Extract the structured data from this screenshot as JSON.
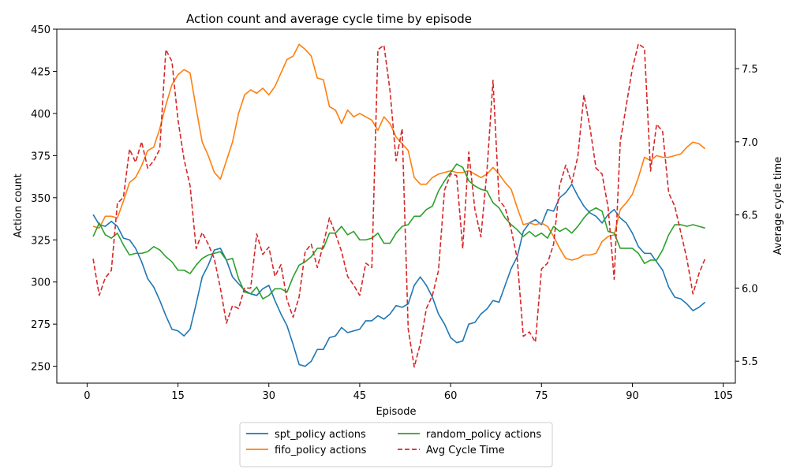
{
  "chart_data": {
    "type": "line",
    "title": "Action count and average cycle time by episode",
    "xlabel": "Episode",
    "ylabel_left": "Action count",
    "ylabel_right": "Average cycle time",
    "xlim": [
      -5,
      107
    ],
    "ylim_left": [
      240,
      450
    ],
    "ylim_right": [
      5.35,
      7.77
    ],
    "x_ticks": [
      0,
      15,
      30,
      45,
      60,
      75,
      90,
      105
    ],
    "y_left_ticks": [
      250,
      275,
      300,
      325,
      350,
      375,
      400,
      425,
      450
    ],
    "y_right_ticks": [
      5.5,
      6.0,
      6.5,
      7.0,
      7.5
    ],
    "grid": false,
    "legend_position": "bottom-center",
    "x": [
      1,
      2,
      3,
      4,
      5,
      6,
      7,
      8,
      9,
      10,
      11,
      12,
      13,
      14,
      15,
      16,
      17,
      18,
      19,
      20,
      21,
      22,
      23,
      24,
      25,
      26,
      27,
      28,
      29,
      30,
      31,
      32,
      33,
      34,
      35,
      36,
      37,
      38,
      39,
      40,
      41,
      42,
      43,
      44,
      45,
      46,
      47,
      48,
      49,
      50,
      51,
      52,
      53,
      54,
      55,
      56,
      57,
      58,
      59,
      60,
      61,
      62,
      63,
      64,
      65,
      66,
      67,
      68,
      69,
      70,
      71,
      72,
      73,
      74,
      75,
      76,
      77,
      78,
      79,
      80,
      81,
      82,
      83,
      84,
      85,
      86,
      87,
      88,
      89,
      90,
      91,
      92,
      93,
      94,
      95,
      96,
      97,
      98,
      99,
      100,
      101,
      102
    ],
    "series": [
      {
        "name": "spt_policy actions",
        "axis": "left",
        "color": "#1f77b4",
        "dash": "solid",
        "values": [
          340,
          334,
          333,
          336,
          333,
          326,
          325,
          320,
          312,
          302,
          297,
          289,
          280,
          272,
          271,
          268,
          272,
          287,
          303,
          310,
          319,
          320,
          313,
          303,
          299,
          295,
          293,
          292,
          296,
          298,
          289,
          281,
          274,
          263,
          251,
          250,
          253,
          260,
          260,
          267,
          268,
          273,
          270,
          271,
          272,
          277,
          277,
          280,
          278,
          281,
          286,
          285,
          287,
          298,
          303,
          298,
          291,
          281,
          275,
          267,
          264,
          265,
          275,
          276,
          281,
          284,
          289,
          288,
          298,
          308,
          315,
          330,
          335,
          337,
          334,
          343,
          342,
          350,
          353,
          358,
          351,
          345,
          341,
          339,
          335,
          340,
          343,
          338,
          335,
          329,
          321,
          317,
          317,
          312,
          307,
          297,
          291,
          290,
          287,
          283,
          285,
          288
        ]
      },
      {
        "name": "fifo_policy actions",
        "axis": "left",
        "color": "#ff7f0e",
        "dash": "solid",
        "values": [
          333,
          332,
          339,
          339,
          338,
          348,
          359,
          362,
          369,
          378,
          380,
          391,
          405,
          417,
          423,
          426,
          424,
          403,
          383,
          375,
          365,
          361,
          372,
          383,
          400,
          411,
          414,
          412,
          415,
          411,
          416,
          424,
          432,
          434,
          441,
          438,
          434,
          421,
          420,
          404,
          402,
          394,
          402,
          398,
          400,
          398,
          396,
          390,
          398,
          394,
          386,
          382,
          378,
          362,
          358,
          358,
          362,
          364,
          365,
          366,
          365,
          365,
          366,
          364,
          362,
          364,
          368,
          364,
          359,
          355,
          344,
          334,
          335,
          334,
          335,
          333,
          327,
          320,
          314,
          313,
          314,
          316,
          316,
          317,
          324,
          327,
          328,
          343,
          347,
          352,
          362,
          374,
          372,
          375,
          374,
          374,
          375,
          376,
          380,
          383,
          382,
          379
        ]
      },
      {
        "name": "random_policy actions",
        "axis": "left",
        "color": "#2ca02c",
        "dash": "solid",
        "values": [
          327,
          335,
          328,
          326,
          329,
          322,
          316,
          317,
          317,
          318,
          321,
          319,
          315,
          312,
          307,
          307,
          305,
          310,
          314,
          316,
          317,
          318,
          313,
          314,
          302,
          294,
          293,
          297,
          290,
          292,
          296,
          296,
          294,
          303,
          310,
          312,
          315,
          320,
          320,
          329,
          329,
          333,
          328,
          330,
          325,
          325,
          326,
          329,
          323,
          323,
          329,
          333,
          334,
          339,
          339,
          343,
          345,
          354,
          360,
          365,
          370,
          368,
          360,
          357,
          355,
          354,
          347,
          344,
          338,
          334,
          331,
          327,
          330,
          327,
          329,
          326,
          333,
          330,
          332,
          329,
          333,
          338,
          342,
          344,
          342,
          330,
          329,
          320,
          320,
          320,
          317,
          311,
          313,
          313,
          319,
          328,
          334,
          334,
          333,
          334,
          333,
          332
        ]
      },
      {
        "name": "Avg Cycle Time",
        "axis": "right",
        "color": "#d62728",
        "dash": "dashed",
        "values": [
          6.2,
          5.95,
          6.07,
          6.12,
          6.58,
          6.62,
          6.95,
          6.86,
          7.0,
          6.82,
          6.87,
          6.95,
          7.63,
          7.55,
          7.15,
          6.88,
          6.7,
          6.27,
          6.38,
          6.3,
          6.2,
          6.0,
          5.76,
          5.88,
          5.86,
          6.0,
          6.0,
          6.37,
          6.23,
          6.28,
          6.08,
          6.16,
          5.92,
          5.8,
          5.94,
          6.25,
          6.3,
          6.14,
          6.3,
          6.48,
          6.37,
          6.25,
          6.08,
          6.02,
          5.95,
          6.17,
          6.14,
          7.63,
          7.66,
          7.35,
          6.87,
          7.09,
          5.72,
          5.46,
          5.62,
          5.86,
          5.95,
          6.12,
          6.67,
          6.78,
          6.77,
          6.27,
          6.93,
          6.54,
          6.35,
          6.8,
          7.42,
          6.6,
          6.55,
          6.4,
          6.2,
          5.67,
          5.7,
          5.63,
          6.13,
          6.17,
          6.3,
          6.7,
          6.84,
          6.72,
          6.9,
          7.32,
          7.1,
          6.82,
          6.78,
          6.55,
          6.06,
          7.0,
          7.25,
          7.5,
          7.67,
          7.64,
          6.8,
          7.12,
          7.07,
          6.65,
          6.56,
          6.38,
          6.2,
          5.96,
          6.1,
          6.2
        ]
      }
    ]
  }
}
